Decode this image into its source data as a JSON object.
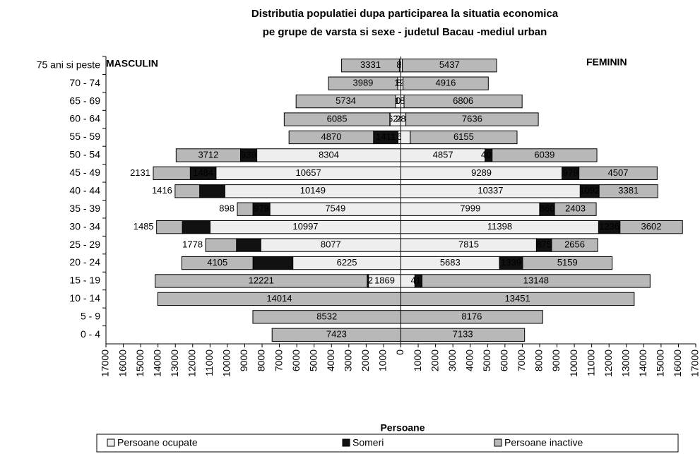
{
  "chart_data": {
    "type": "pyramid",
    "title": "Distributia populatiei dupa participarea la situatia economica",
    "subtitle": "pe grupe de varsta si sexe - judetul Bacau -mediul urban",
    "x_label": "Persoane",
    "left_label": "MASCULIN",
    "right_label": "FEMININ",
    "categories": [
      "75 ani si peste",
      "70 - 74",
      "65 - 69",
      "60 - 64",
      "55 - 59",
      "50 - 54",
      "45 - 49",
      "40 - 44",
      "35 - 39",
      "30 - 34",
      "25 - 29",
      "20 - 24",
      "15 - 19",
      "10 - 14",
      "5 - 9",
      "0 - 4"
    ],
    "xlim": [
      -17000,
      17000
    ],
    "xticks": [
      {
        "value": -17000,
        "label": "17000"
      },
      {
        "value": -16000,
        "label": "16000"
      },
      {
        "value": -15000,
        "label": "15000"
      },
      {
        "value": -14000,
        "label": "14000"
      },
      {
        "value": -13000,
        "label": "13000"
      },
      {
        "value": -12000,
        "label": "12000"
      },
      {
        "value": -11000,
        "label": "11000"
      },
      {
        "value": -10000,
        "label": "10000"
      },
      {
        "value": -9000,
        "label": "9000"
      },
      {
        "value": -8000,
        "label": "8000"
      },
      {
        "value": -7000,
        "label": "7000"
      },
      {
        "value": -6000,
        "label": "6000"
      },
      {
        "value": -5000,
        "label": "5000"
      },
      {
        "value": -4000,
        "label": "4000"
      },
      {
        "value": -3000,
        "label": "3000"
      },
      {
        "value": -2000,
        "label": "2000"
      },
      {
        "value": -1000,
        "label": "1000"
      },
      0,
      1000,
      2000,
      3000,
      4000,
      5000,
      6000,
      7000,
      8000,
      9000,
      10000,
      11000,
      12000,
      13000,
      14000,
      15000,
      16000,
      17000
    ],
    "series": [
      {
        "name": "Persoane ocupate",
        "color": "#eeeeee",
        "male": [
          86,
          186,
          306,
          624,
          166,
          8304,
          10657,
          10149,
          7549,
          10997,
          8077,
          6225,
          1869,
          0,
          0,
          0
        ],
        "male_labels": [
          "86",
          "186",
          "306",
          "624",
          "166",
          "8304",
          "10657",
          "10149",
          "7549",
          "10997",
          "8077",
          "6225",
          "1869",
          null,
          null,
          null
        ],
        "female": [
          83,
          125,
          185,
          288,
          543,
          4857,
          9289,
          10337,
          7999,
          11398,
          7815,
          5683,
          809,
          0,
          0,
          0
        ],
        "female_labels": [
          "83",
          "125",
          "185",
          "288",
          null,
          "4857",
          "9289",
          "10337",
          "7999",
          "11398",
          "7815",
          "5683",
          null,
          null,
          null,
          null
        ]
      },
      {
        "name": "Someri",
        "color": "#111111",
        "male": [
          0,
          0,
          0,
          16,
          1411,
          939,
          1484,
          1450,
          979,
          1600,
          1400,
          2300,
          72,
          0,
          0,
          0
        ],
        "male_labels": [
          null,
          null,
          null,
          null,
          "1411",
          "939",
          "1484",
          null,
          "979",
          null,
          null,
          null,
          "72",
          null,
          null,
          null
        ],
        "female": [
          0,
          0,
          0,
          0,
          0,
          405,
          979,
          1092,
          860,
          1236,
          875,
          1339,
          410,
          0,
          0,
          0
        ],
        "female_labels": [
          null,
          null,
          null,
          null,
          null,
          "405",
          "979",
          "1092",
          "860",
          "1236",
          "875",
          "1339",
          "410",
          null,
          null,
          null
        ]
      },
      {
        "name": "Persoane inactive",
        "color": "#b8b8b8",
        "male": [
          3331,
          3989,
          5734,
          6085,
          4870,
          3712,
          2131,
          1416,
          898,
          1485,
          1778,
          4105,
          12221,
          14014,
          8532,
          7423
        ],
        "male_labels": [
          "3331",
          "3989",
          "5734",
          "6085",
          "4870",
          "3712",
          "2131",
          "1416",
          "898",
          "1485",
          "1778",
          "4105",
          "12221",
          "14014",
          "8532",
          "7423"
        ],
        "female": [
          5437,
          4916,
          6806,
          7636,
          6155,
          6039,
          4507,
          3381,
          2403,
          3602,
          2656,
          5159,
          13148,
          13451,
          8176,
          7133
        ],
        "female_labels": [
          "5437",
          "4916",
          "6806",
          "7636",
          "6155",
          "6039",
          "4507",
          "3381",
          "2403",
          "3602",
          "2656",
          "5159",
          "13148",
          "13451",
          "8176",
          "7133"
        ]
      }
    ]
  }
}
